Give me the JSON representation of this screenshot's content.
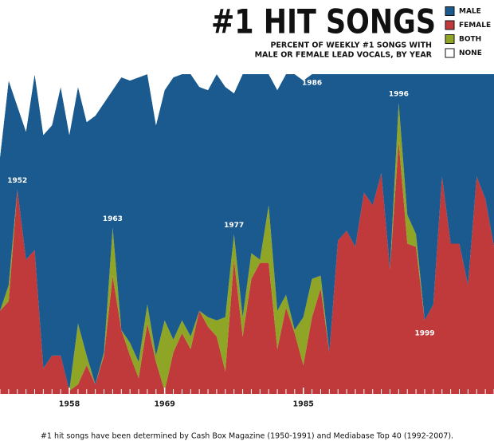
{
  "chart_data": {
    "type": "stacked_area",
    "title": "#1 HIT SONGS",
    "subtitle": [
      "PERCENT OF WEEKLY #1 SONGS WITH",
      "MALE OR FEMALE LEAD VOCALS, BY YEAR"
    ],
    "note": "#1 hit songs have been determined by Cash Box Magazine (1950-1991) and Mediabase Top 40 (1992-2007).",
    "x": [
      1950,
      1951,
      1952,
      1953,
      1954,
      1955,
      1956,
      1957,
      1958,
      1959,
      1960,
      1961,
      1962,
      1963,
      1964,
      1965,
      1966,
      1967,
      1968,
      1969,
      1970,
      1971,
      1972,
      1973,
      1974,
      1975,
      1976,
      1977,
      1978,
      1979,
      1980,
      1981,
      1982,
      1983,
      1984,
      1985,
      1986,
      1987,
      1988,
      1989,
      1990,
      1991,
      1992,
      1993,
      1994,
      1995,
      1996,
      1997,
      1998,
      1999,
      2000,
      2001,
      2002,
      2003,
      2004,
      2005,
      2006,
      2007
    ],
    "series": [
      {
        "name": "FEMALE",
        "color": "#c0393b",
        "values": [
          26,
          29,
          64,
          42,
          45,
          8,
          12,
          12,
          1,
          3,
          9,
          3,
          12,
          37,
          20,
          12,
          5,
          22,
          10,
          1,
          13,
          19,
          14,
          26,
          21,
          18,
          7,
          42,
          18,
          36,
          41,
          41,
          14,
          27,
          19,
          9,
          24,
          33,
          13,
          48,
          51,
          46,
          63,
          59,
          69,
          39,
          79,
          47,
          46,
          23,
          28,
          68,
          47,
          47,
          34,
          68,
          61,
          46
        ]
      },
      {
        "name": "BOTH",
        "color": "#8fa526",
        "values": [
          0,
          5,
          0,
          0,
          0,
          0,
          0,
          0,
          0,
          19,
          3,
          0,
          1,
          15,
          0,
          4,
          5,
          6,
          2,
          22,
          4,
          4,
          4,
          0,
          3,
          5,
          17,
          8,
          6,
          8,
          1,
          18,
          12,
          4,
          1,
          15,
          12,
          4,
          0,
          0,
          0,
          0,
          0,
          0,
          0,
          0,
          12,
          9,
          4,
          0,
          0,
          0,
          0,
          0,
          0,
          0,
          0,
          0
        ]
      },
      {
        "name": "MALE",
        "color": "#1a5a8e",
        "values": [
          48,
          64,
          26,
          40,
          55,
          73,
          72,
          84,
          80,
          74,
          73,
          84,
          78,
          43,
          79,
          82,
          89,
          72,
          72,
          72,
          82,
          77,
          82,
          70,
          71,
          77,
          72,
          44,
          76,
          56,
          58,
          41,
          69,
          69,
          80,
          74,
          64,
          63,
          87,
          52,
          49,
          54,
          37,
          41,
          31,
          61,
          9,
          44,
          50,
          77,
          72,
          32,
          53,
          53,
          66,
          32,
          39,
          54
        ]
      },
      {
        "name": "NONE",
        "color": "#ffffff",
        "values": [
          26,
          2,
          10,
          18,
          0,
          19,
          16,
          4,
          19,
          4,
          15,
          13,
          9,
          5,
          1,
          2,
          1,
          0,
          16,
          5,
          1,
          0,
          0,
          4,
          5,
          0,
          4,
          6,
          0,
          0,
          0,
          0,
          5,
          0,
          0,
          2,
          0,
          0,
          0,
          0,
          0,
          0,
          0,
          0,
          0,
          0,
          0,
          0,
          0,
          0,
          0,
          0,
          0,
          0,
          0,
          0,
          0,
          0
        ]
      }
    ],
    "legend_order": [
      2,
      0,
      1,
      3
    ],
    "annotations": [
      1952,
      1963,
      1977,
      1986,
      1996,
      1999
    ],
    "xlim": [
      1950,
      2007
    ],
    "xticks": [
      1958,
      1969,
      1985
    ],
    "ylim": [
      0,
      100
    ]
  }
}
